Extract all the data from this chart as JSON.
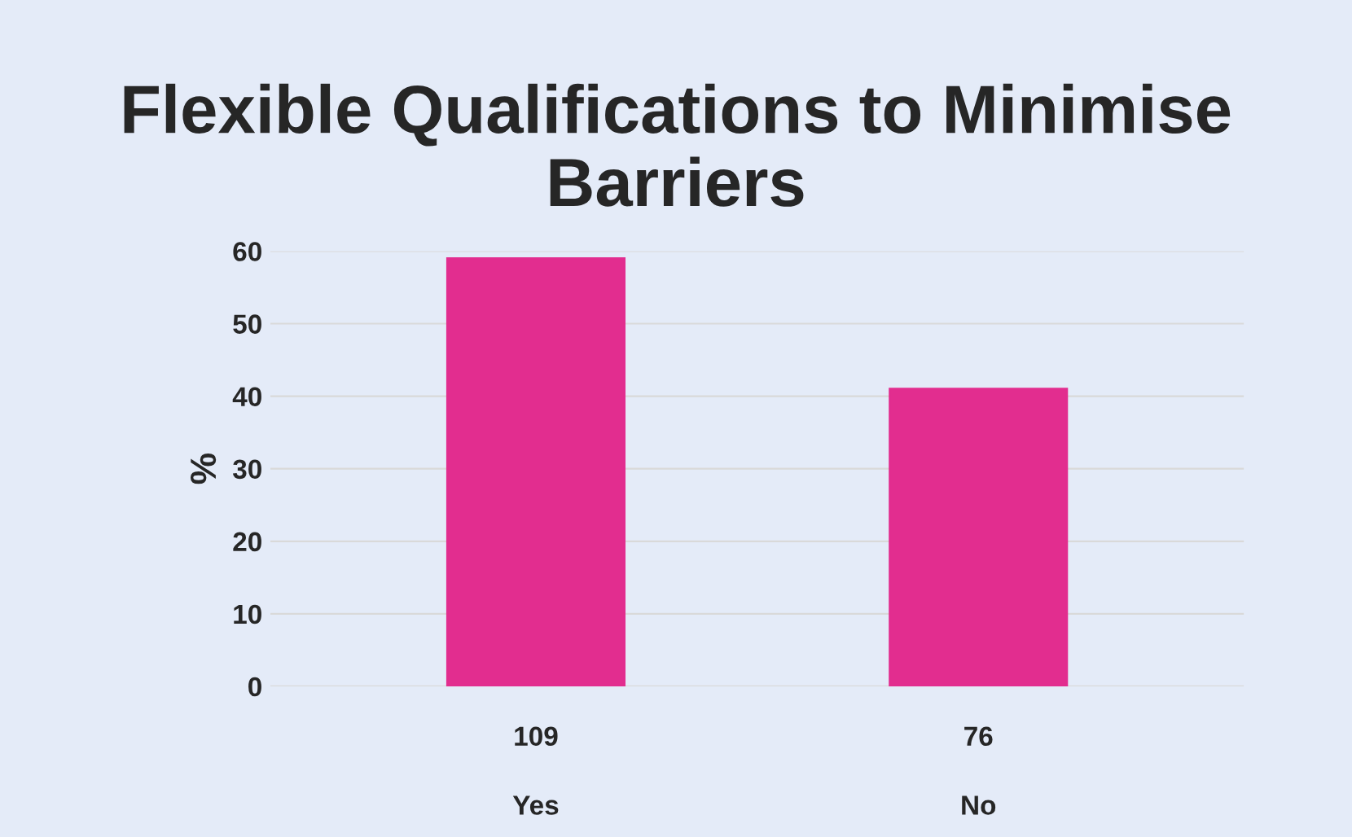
{
  "chart_data": {
    "type": "bar",
    "title": "Flexible Qualifications to Minimise Barriers",
    "ylabel": "%",
    "categories": [
      "Yes",
      "No"
    ],
    "series": [
      {
        "color": "#e22d8f",
        "values": [
          59,
          41
        ]
      }
    ],
    "ylim": [
      0,
      60
    ],
    "yticks": [
      0,
      10,
      20,
      30,
      40,
      50,
      60
    ],
    "grid": "y",
    "legend": false,
    "annotations": [
      "109",
      "76"
    ]
  }
}
